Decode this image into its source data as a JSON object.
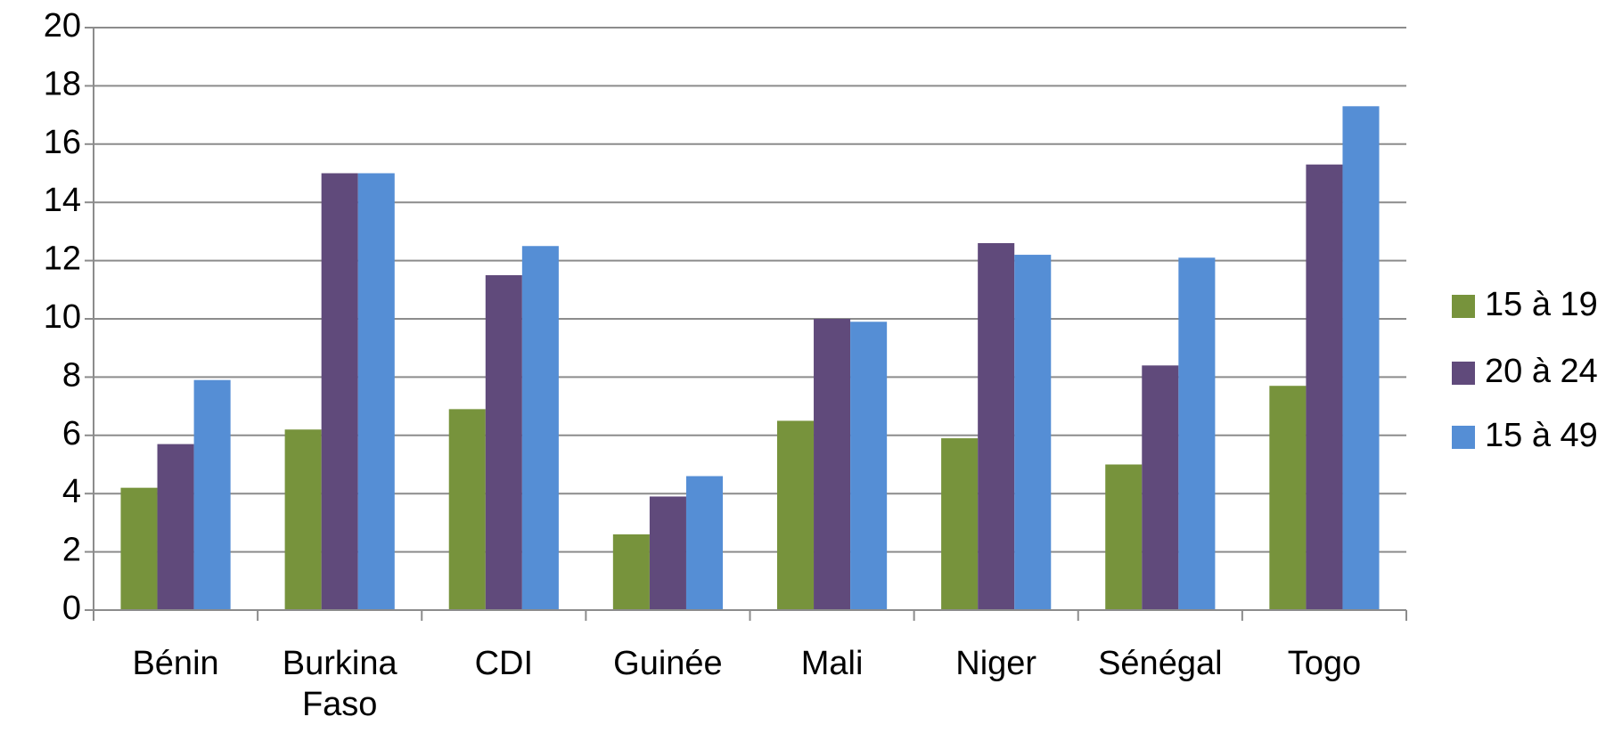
{
  "chart_data": {
    "type": "bar",
    "categories": [
      "Bénin",
      "Burkina Faso",
      "CDI",
      "Guinée",
      "Mali",
      "Niger",
      "Sénégal",
      "Togo"
    ],
    "series": [
      {
        "name": "15 à 19",
        "color": "#77933c",
        "values": [
          4.2,
          6.2,
          6.9,
          2.6,
          6.5,
          5.9,
          5.0,
          7.7
        ]
      },
      {
        "name": "20 à 24",
        "color": "#604a7b",
        "values": [
          5.7,
          15,
          11.5,
          3.9,
          10,
          12.6,
          8.4,
          15.3
        ]
      },
      {
        "name": "15 à 49",
        "color": "#558ed5",
        "values": [
          7.9,
          15,
          12.5,
          4.6,
          9.9,
          12.2,
          12.1,
          17.3
        ]
      }
    ],
    "ylim": [
      0,
      20
    ],
    "yticks": [
      0,
      2,
      4,
      6,
      8,
      10,
      12,
      14,
      16,
      18,
      20
    ],
    "grid": true,
    "legend": "right"
  }
}
